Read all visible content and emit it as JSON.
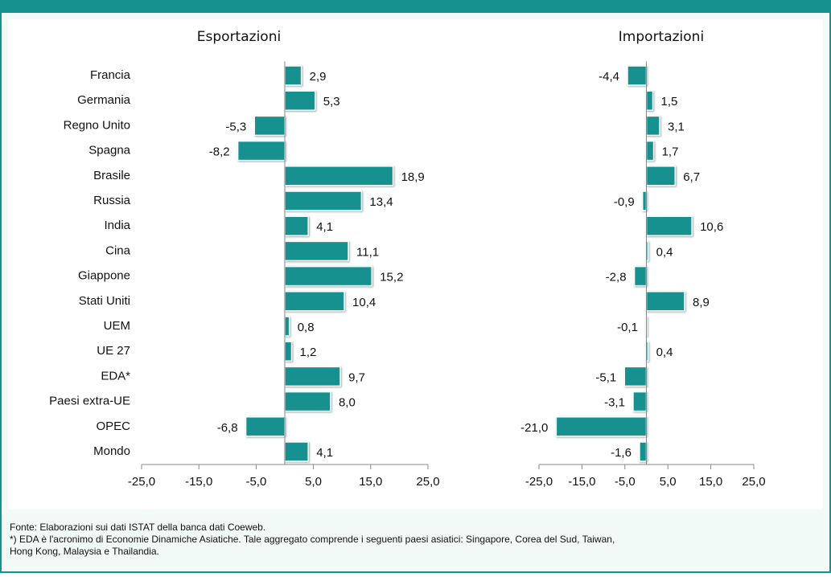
{
  "chart_data": [
    {
      "type": "bar",
      "orientation": "horizontal",
      "title": "Esportazioni",
      "categories": [
        "Francia",
        "Germania",
        "Regno Unito",
        "Spagna",
        "Brasile",
        "Russia",
        "India",
        "Cina",
        "Giappone",
        "Stati Uniti",
        "UEM",
        "UE 27",
        "EDA*",
        "Paesi extra-UE",
        "OPEC",
        "Mondo"
      ],
      "values": [
        2.9,
        5.3,
        -5.3,
        -8.2,
        18.9,
        13.4,
        4.1,
        11.1,
        15.2,
        10.4,
        0.8,
        1.2,
        9.7,
        8.0,
        -6.8,
        4.1
      ],
      "value_labels": [
        "2,9",
        "5,3",
        "-5,3",
        "-8,2",
        "18,9",
        "13,4",
        "4,1",
        "11,1",
        "15,2",
        "10,4",
        "0,8",
        "1,2",
        "9,7",
        "8,0",
        "-6,8",
        "4,1"
      ],
      "color": "#17918f",
      "xlim": [
        -25,
        25
      ],
      "xticks": [
        {
          "value": -25,
          "label": "-25,0"
        },
        {
          "value": -15,
          "label": "-15,0"
        },
        {
          "value": -5,
          "label": "-5,0"
        },
        {
          "value": 5,
          "label": "5,0"
        },
        {
          "value": 15,
          "label": "15,0"
        },
        {
          "value": 25,
          "label": "25,0"
        }
      ]
    },
    {
      "type": "bar",
      "orientation": "horizontal",
      "title": "Importazioni",
      "values": [
        -4.4,
        1.5,
        3.1,
        1.7,
        6.7,
        -0.9,
        10.6,
        0.4,
        -2.8,
        8.9,
        -0.1,
        0.4,
        -5.1,
        -3.1,
        -21.0,
        -1.6
      ],
      "value_labels": [
        "-4,4",
        "1,5",
        "3,1",
        "1,7",
        "6,7",
        "-0,9",
        "10,6",
        "0,4",
        "-2,8",
        "8,9",
        "-0,1",
        "0,4",
        "-5,1",
        "-3,1",
        "-21,0",
        "-1,6"
      ],
      "color": "#17918f",
      "xlim": [
        -25,
        25
      ],
      "xticks": [
        {
          "value": -25,
          "label": "-25,0"
        },
        {
          "value": -15,
          "label": "-15,0"
        },
        {
          "value": -5,
          "label": "-5,0"
        },
        {
          "value": 5,
          "label": "5,0"
        },
        {
          "value": 15,
          "label": "15,0"
        },
        {
          "value": 25,
          "label": "25,0"
        }
      ]
    }
  ],
  "notes": [
    "Fonte: Elaborazioni sui dati ISTAT della banca dati Coeweb.",
    "*) EDA è l'acronimo di Economie Dinamiche Asiatiche. Tale aggregato comprende i seguenti paesi asiatici: Singapore, Corea del Sud, Taiwan,",
    "Hong Kong, Malaysia e Thailandia."
  ]
}
